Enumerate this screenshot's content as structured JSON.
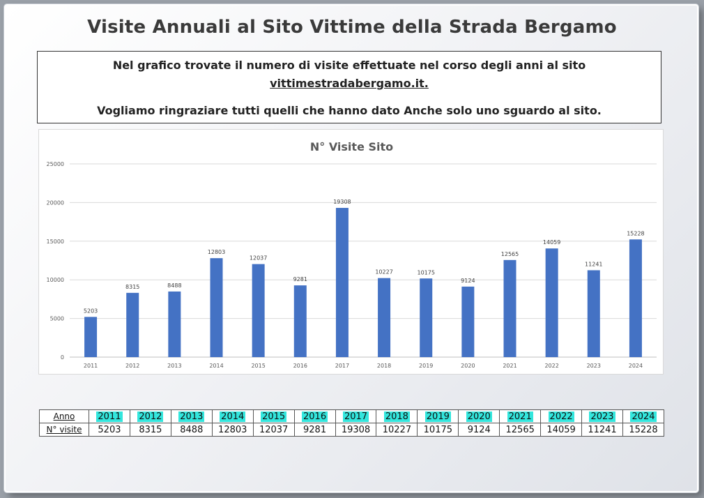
{
  "page": {
    "title": "Visite Annuali al Sito Vittime della Strada Bergamo",
    "notice": {
      "line1": "Nel grafico trovate il numero di visite effettuate nel corso degli anni al sito",
      "link": "vittimestradabergamo.it.",
      "line3": "Vogliamo ringraziare tutti quelli che hanno dato Anche solo uno sguardo al sito."
    }
  },
  "chart_data": {
    "type": "bar",
    "title": "N° Visite Sito",
    "categories": [
      "2011",
      "2012",
      "2013",
      "2014",
      "2015",
      "2016",
      "2017",
      "2018",
      "2019",
      "2020",
      "2021",
      "2022",
      "2023",
      "2024"
    ],
    "values": [
      5203,
      8315,
      8488,
      12803,
      12037,
      9281,
      19308,
      10227,
      10175,
      9124,
      12565,
      14059,
      11241,
      15228
    ],
    "yticks": [
      0,
      5000,
      10000,
      15000,
      20000,
      25000
    ],
    "ylim": [
      0,
      25000
    ],
    "grid": true,
    "bar_color": "#4472c4",
    "legend": "none"
  },
  "table": {
    "row1_label": "Anno",
    "row2_label": "N° visite",
    "highlight_color": "#33e6dd"
  }
}
